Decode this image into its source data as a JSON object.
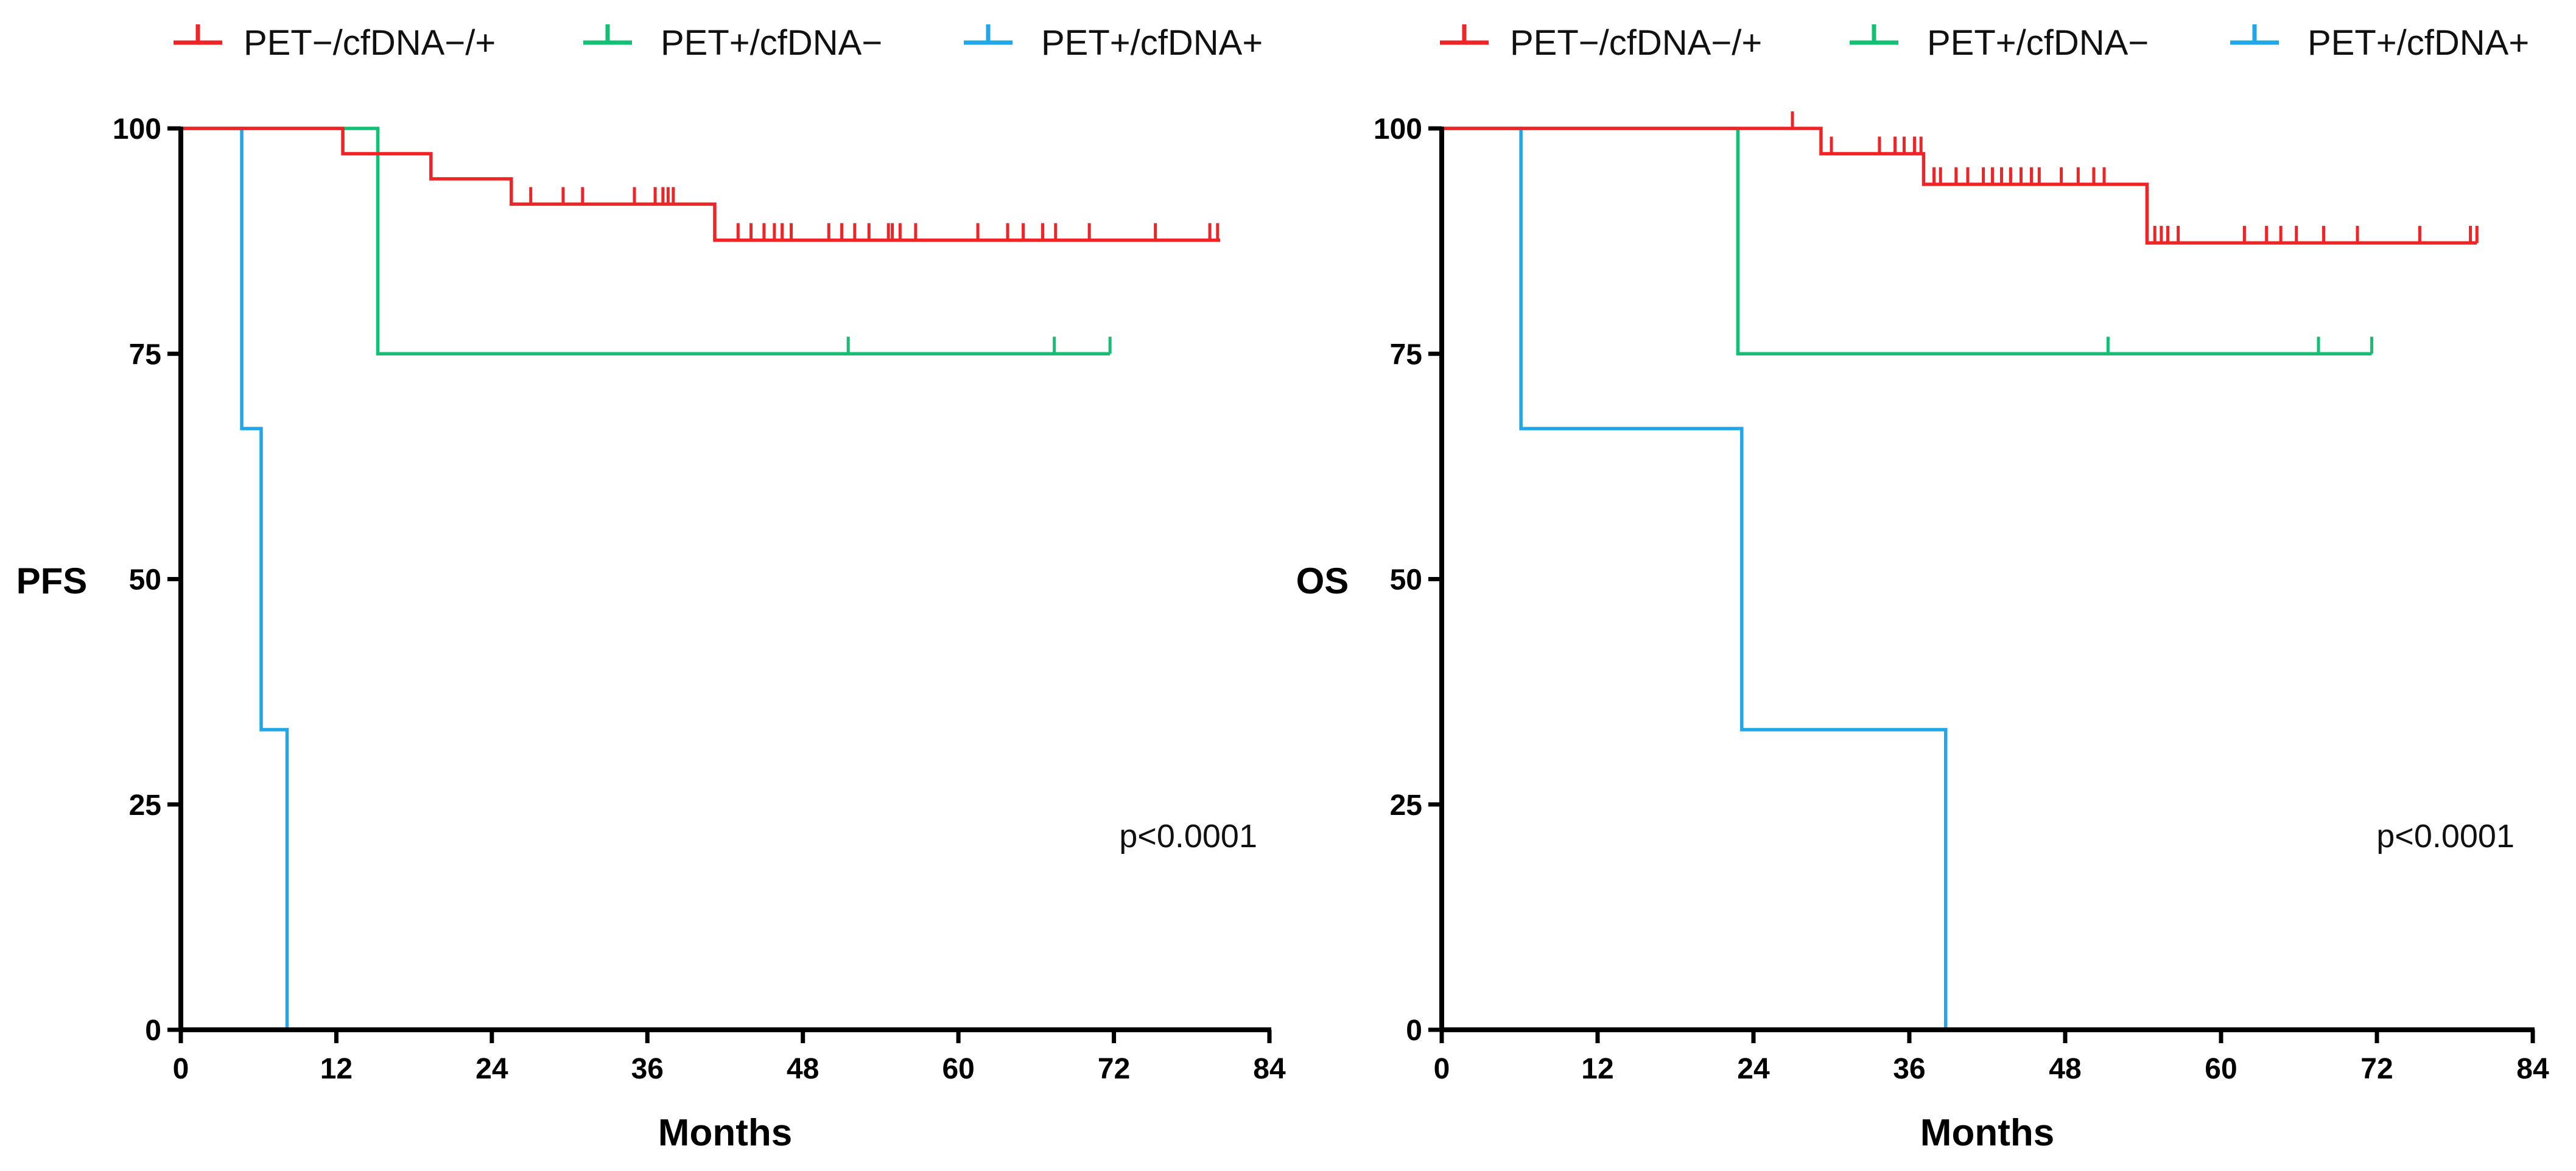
{
  "colors": {
    "red": "#ee2427",
    "green": "#12bf73",
    "blue": "#22a6e8",
    "axis": "#000000"
  },
  "chart_data": [
    {
      "type": "line",
      "subtype": "kaplan-meier",
      "title": "",
      "xlabel": "Months",
      "ylabel": "PFS",
      "xlim": [
        0,
        84
      ],
      "ylim": [
        0,
        100
      ],
      "xticks": [
        0,
        12,
        24,
        36,
        48,
        60,
        72,
        84
      ],
      "yticks": [
        0,
        25,
        50,
        75,
        100
      ],
      "annotation": "p<0.0001",
      "legend": [
        "PET−/cfDNA−/+",
        "PET+/cfDNA−",
        "PET+/cfDNA+"
      ],
      "series": [
        {
          "name": "PET−/cfDNA−/+",
          "color": "red",
          "steps": [
            [
              0,
              100
            ],
            [
              12.5,
              97.2
            ],
            [
              19.3,
              94.4
            ],
            [
              25.5,
              91.6
            ],
            [
              41.2,
              87.6
            ],
            [
              80.2,
              87.6
            ]
          ],
          "censors": [
            27,
            29.5,
            31,
            35,
            36.6,
            37.2,
            37.6,
            38,
            43,
            44,
            45,
            45.8,
            46.4,
            47.1,
            50,
            51,
            52,
            53.1,
            54.6,
            54.9,
            55.5,
            56.7,
            61.5,
            63.8,
            65,
            66.5,
            67.5,
            70.1,
            75.2,
            79.4,
            80
          ]
        },
        {
          "name": "PET+/cfDNA−",
          "color": "green",
          "steps": [
            [
              0,
              100
            ],
            [
              15.2,
              75
            ],
            [
              71.7,
              75
            ]
          ],
          "censors": [
            51.5,
            67.4,
            71.7
          ]
        },
        {
          "name": "PET+/cfDNA+",
          "color": "blue",
          "steps": [
            [
              0,
              100
            ],
            [
              4.7,
              66.7
            ],
            [
              6.2,
              33.3
            ],
            [
              8.2,
              0
            ]
          ],
          "censors": []
        }
      ]
    },
    {
      "type": "line",
      "subtype": "kaplan-meier",
      "title": "",
      "xlabel": "Months",
      "ylabel": "OS",
      "xlim": [
        0,
        84
      ],
      "ylim": [
        0,
        100
      ],
      "xticks": [
        0,
        12,
        24,
        36,
        48,
        60,
        72,
        84
      ],
      "yticks": [
        0,
        25,
        50,
        75,
        100
      ],
      "annotation": "p<0.0001",
      "legend": [
        "PET−/cfDNA−/+",
        "PET+/cfDNA−",
        "PET+/cfDNA+"
      ],
      "series": [
        {
          "name": "PET−/cfDNA−/+",
          "color": "red",
          "steps": [
            [
              0,
              100
            ],
            [
              29.2,
              97.2
            ],
            [
              37.1,
              93.8
            ],
            [
              54.3,
              87.3
            ],
            [
              79.7,
              87.3
            ]
          ],
          "censors": [
            27,
            30,
            33.7,
            34.9,
            35.6,
            36.4,
            36.9,
            37.9,
            38.4,
            39.6,
            40.5,
            41.7,
            42.4,
            43.1,
            43.8,
            44.6,
            45.4,
            46,
            47.7,
            49,
            50.2,
            51,
            54.9,
            55.4,
            55.9,
            56.7,
            61.8,
            63.5,
            64.6,
            65.8,
            67.9,
            70.5,
            75.3,
            79.2,
            79.7
          ]
        },
        {
          "name": "PET+/cfDNA−",
          "color": "green",
          "steps": [
            [
              0,
              100
            ],
            [
              22.8,
              75
            ],
            [
              71.6,
              75
            ]
          ],
          "censors": [
            51.3,
            67.5,
            71.6
          ]
        },
        {
          "name": "PET+/cfDNA+",
          "color": "blue",
          "steps": [
            [
              0,
              100
            ],
            [
              6.1,
              66.7
            ],
            [
              23.1,
              33.3
            ],
            [
              38.8,
              0
            ]
          ],
          "censors": []
        }
      ]
    }
  ]
}
